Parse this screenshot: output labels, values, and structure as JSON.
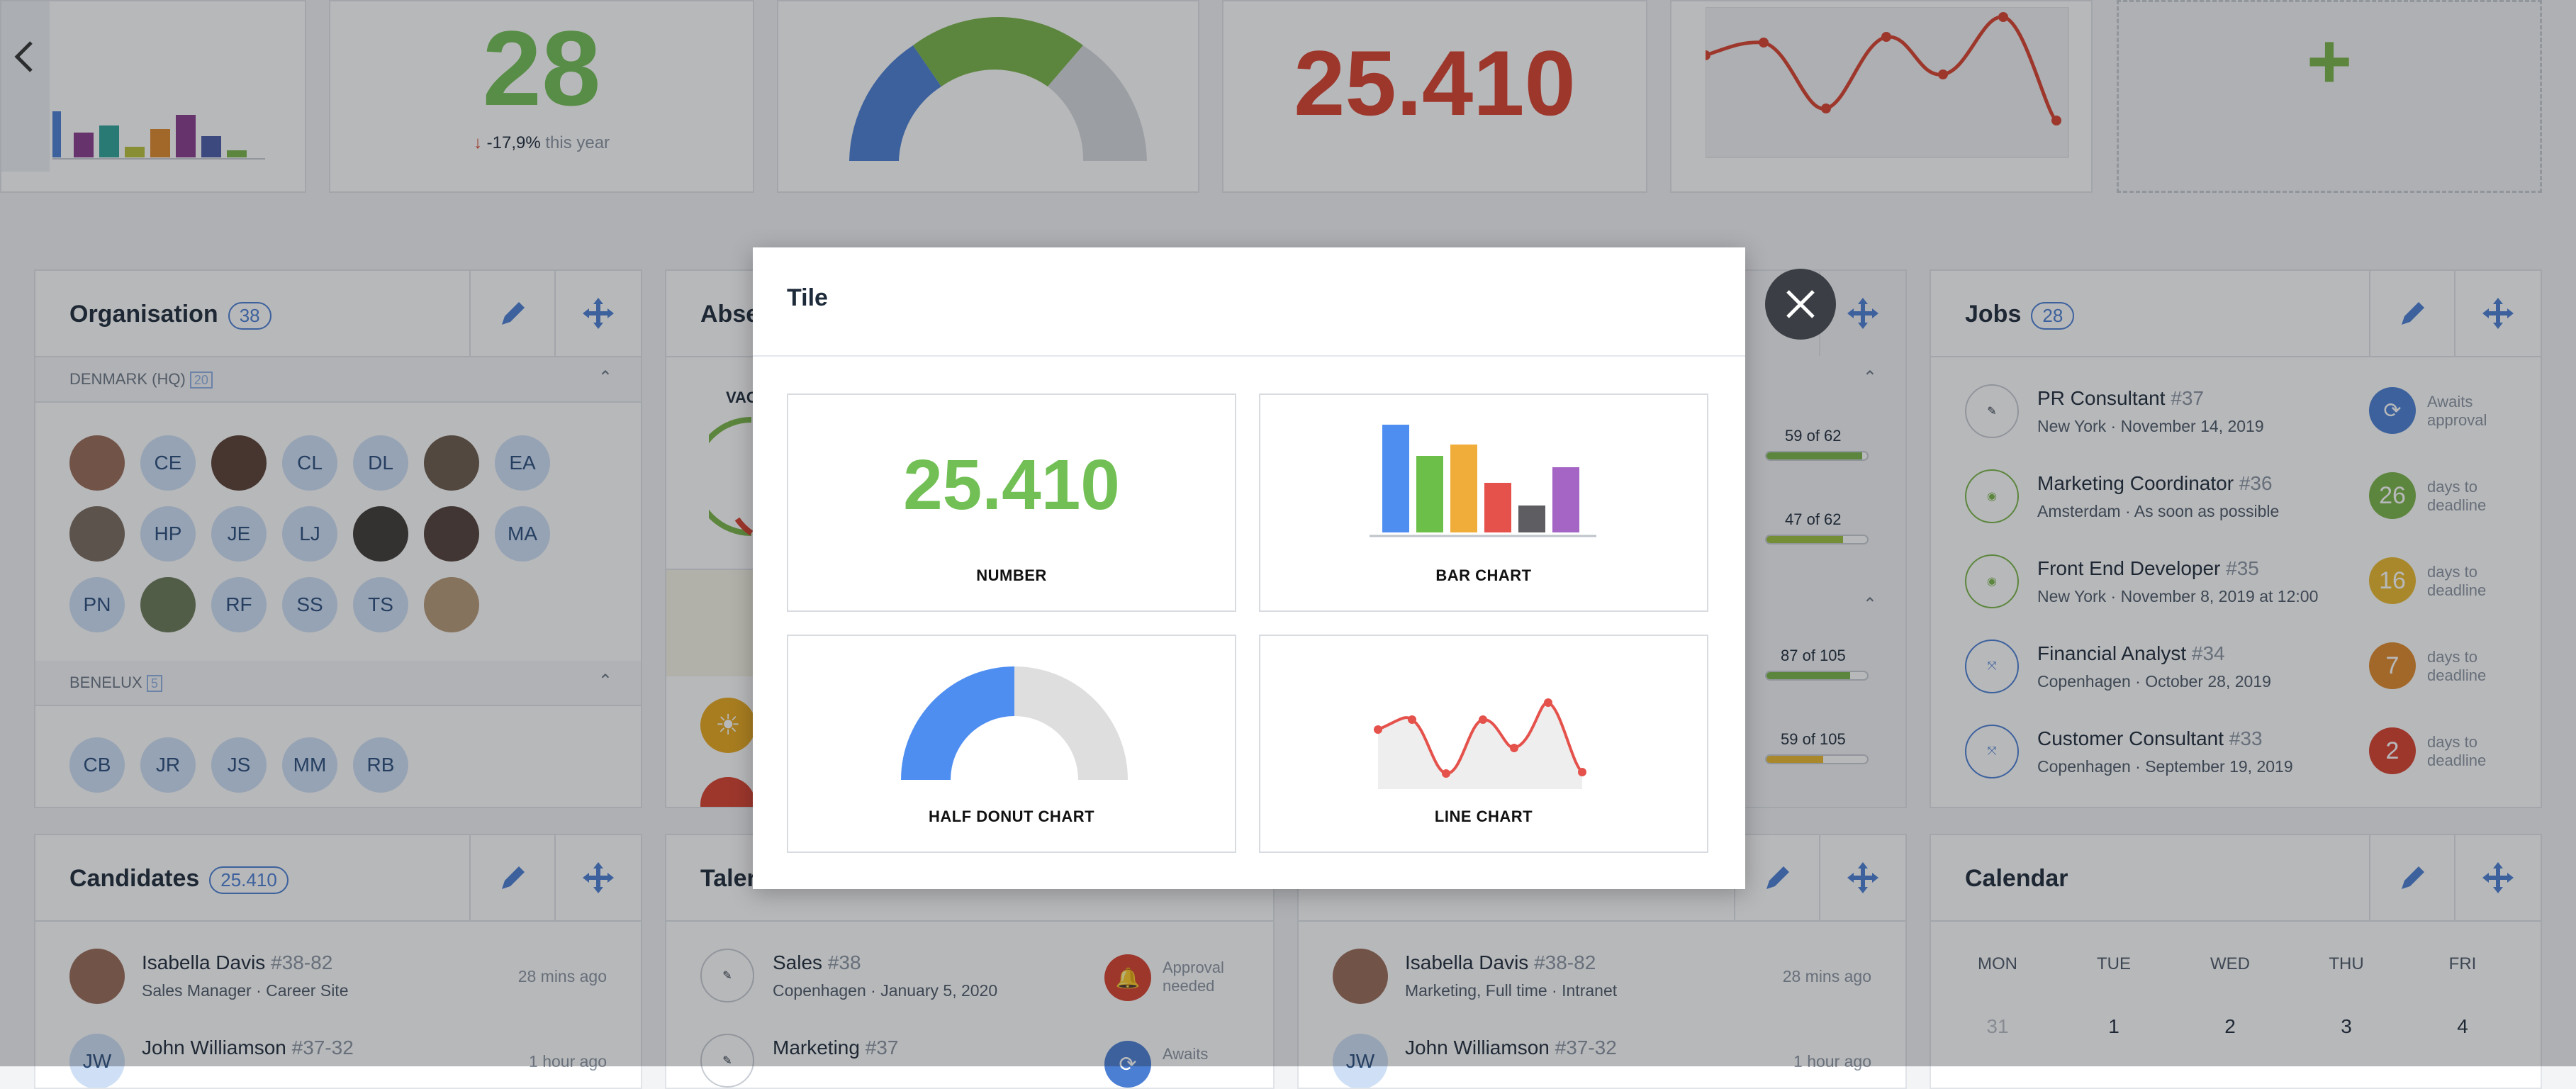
{
  "top_tiles": {
    "number_tile": {
      "value": "28",
      "change": "-17,9%",
      "period": "this year"
    },
    "big_number": "25.410"
  },
  "organisation": {
    "title": "Organisation",
    "count": "38",
    "sections": [
      {
        "label": "DENMARK (HQ)",
        "badge": "20"
      },
      {
        "label": "BENELUX",
        "badge": "5"
      }
    ],
    "denmark_initials": [
      "CE",
      "CL",
      "DL",
      "EA",
      "HP",
      "JE",
      "LJ",
      "MA",
      "PN",
      "RF",
      "SS",
      "TS"
    ],
    "benelux_initials": [
      "CB",
      "JR",
      "JS",
      "MM",
      "RB"
    ]
  },
  "absence": {
    "title": "Abse",
    "vac_label": "VAC"
  },
  "middle_progress": [
    {
      "label": "59 of 62",
      "fraction": 0.95,
      "color": "#7ab547"
    },
    {
      "label": "47 of 62",
      "fraction": 0.76,
      "color": "#9bc23c"
    },
    {
      "label": "87 of 105",
      "fraction": 0.83,
      "color": "#7ab547"
    },
    {
      "label": "59 of 105",
      "fraction": 0.56,
      "color": "#e9b92c"
    }
  ],
  "jobs": {
    "title": "Jobs",
    "count": "28",
    "items": [
      {
        "title": "PR Consultant",
        "num": "#37",
        "location": "New York",
        "date": "November 14, 2019",
        "status_value": "",
        "status_text": "Awaits approval",
        "status_color": "#4a7fd4",
        "icon": "pencil-icon"
      },
      {
        "title": "Marketing Coordinator",
        "num": "#36",
        "location": "Amsterdam",
        "date": "As soon as possible",
        "status_value": "26",
        "status_text": "days to deadline",
        "status_color": "#7ab547",
        "icon": "rss-icon"
      },
      {
        "title": "Front End Developer",
        "num": "#35",
        "location": "New York",
        "date": "November 8, 2019 at 12:00",
        "status_value": "16",
        "status_text": "days to deadline",
        "status_color": "#e9b92c",
        "icon": "rss-icon"
      },
      {
        "title": "Financial Analyst",
        "num": "#34",
        "location": "Copenhagen",
        "date": "October 28, 2019",
        "status_value": "7",
        "status_text": "days to deadline",
        "status_color": "#e08a2c",
        "icon": "share-icon"
      },
      {
        "title": "Customer Consultant",
        "num": "#33",
        "location": "Copenhagen",
        "date": "September 19, 2019",
        "status_value": "2",
        "status_text": "days to deadline",
        "status_color": "#d9412f",
        "icon": "share-icon"
      }
    ]
  },
  "candidates": {
    "title": "Candidates",
    "count": "25.410",
    "items": [
      {
        "name": "Isabella Davis",
        "num": "#38-82",
        "sub1": "Sales Manager",
        "sub2": "Career Site",
        "time": "28 mins ago",
        "initials": ""
      },
      {
        "name": "John Williamson",
        "num": "#37-32",
        "sub1": "",
        "sub2": "",
        "time": "1 hour ago",
        "initials": "JW"
      }
    ]
  },
  "talent": {
    "title": "Taler",
    "items": [
      {
        "title": "Sales",
        "num": "#38",
        "location": "Copenhagen",
        "date": "January 5, 2020",
        "status": "Approval needed"
      },
      {
        "title": "Marketing",
        "num": "#37",
        "location": "",
        "date": "",
        "status": "Awaits"
      }
    ]
  },
  "applications": {
    "items": [
      {
        "name": "Isabella Davis",
        "num": "#38-82",
        "sub1": "Marketing, Full time",
        "sub2": "Intranet",
        "time": "28 mins ago"
      },
      {
        "name": "John Williamson",
        "num": "#37-32",
        "time": "1 hour ago",
        "initials": "JW"
      }
    ]
  },
  "calendar": {
    "title": "Calendar",
    "days": [
      "MON",
      "TUE",
      "WED",
      "THU",
      "FRI"
    ],
    "dates": [
      "31",
      "1",
      "2",
      "3",
      "4"
    ]
  },
  "modal": {
    "title": "Tile",
    "number_preview": "25.410",
    "options": [
      "NUMBER",
      "BAR CHART",
      "HALF DONUT CHART",
      "LINE CHART"
    ]
  },
  "colors": {
    "accent_blue": "#4a7fd4",
    "green": "#7ab547",
    "red": "#d9412f",
    "number_green": "#72c055"
  }
}
